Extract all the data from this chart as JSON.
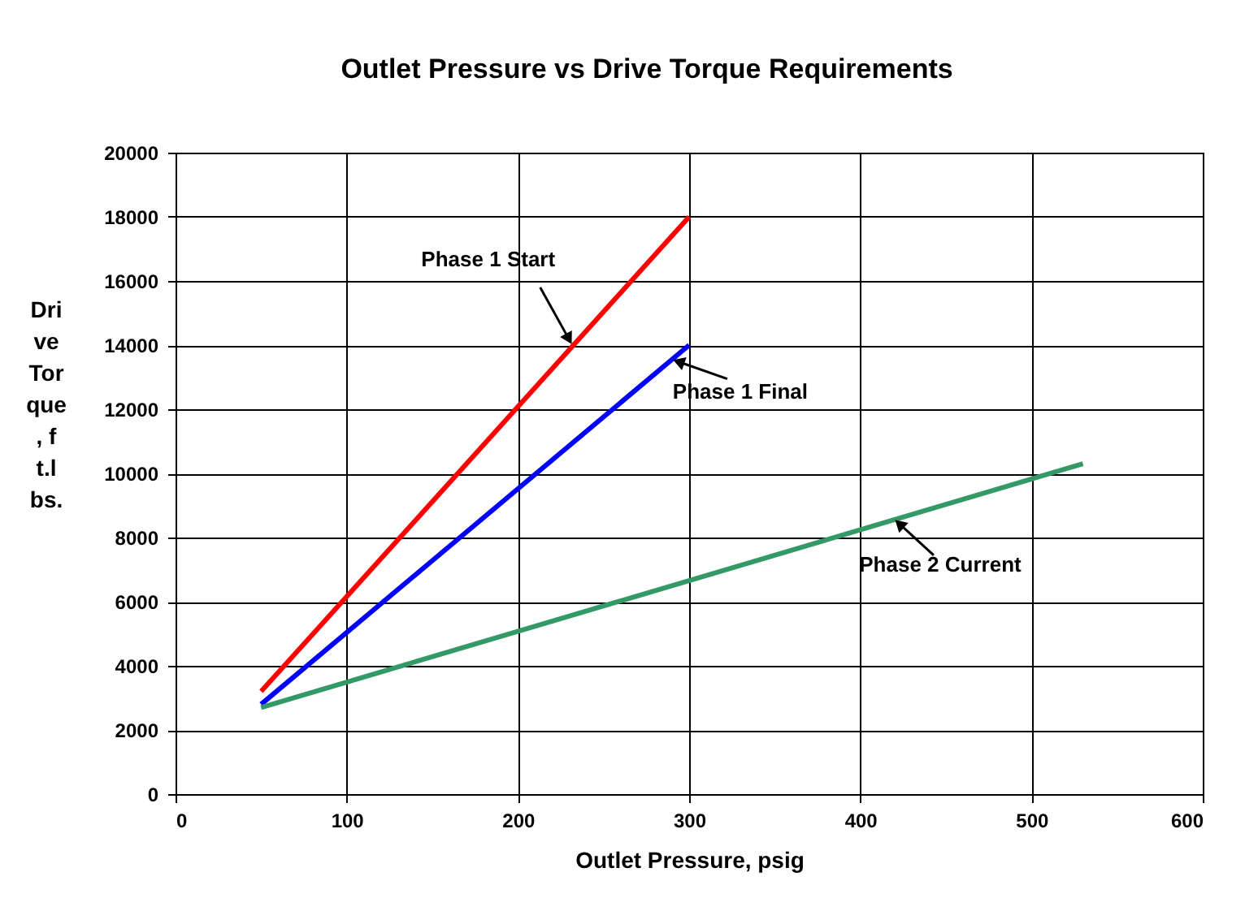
{
  "chart_data": {
    "type": "line",
    "title": "Outlet Pressure vs Drive Torque Requirements",
    "xlabel": "Outlet Pressure, psig",
    "ylabel": "Drive Torque, ft.lbs.",
    "xlim": [
      0,
      600
    ],
    "xticks": [
      0,
      100,
      200,
      300,
      400,
      500,
      600
    ],
    "ylim": [
      0,
      20000
    ],
    "yticks": [
      0,
      2000,
      4000,
      6000,
      8000,
      10000,
      12000,
      14000,
      16000,
      18000,
      20000
    ],
    "grid": true,
    "line_style": "solid",
    "series": [
      {
        "name": "Phase 1 Start",
        "color": "#ff0000",
        "x": [
          50,
          300
        ],
        "values": [
          3200,
          18000
        ]
      },
      {
        "name": "Phase 1 Final",
        "color": "#0000ff",
        "x": [
          50,
          300
        ],
        "values": [
          2800,
          14000
        ]
      },
      {
        "name": "Phase 2 Current",
        "color": "#339966",
        "x": [
          50,
          530
        ],
        "values": [
          2700,
          10300
        ]
      }
    ]
  }
}
